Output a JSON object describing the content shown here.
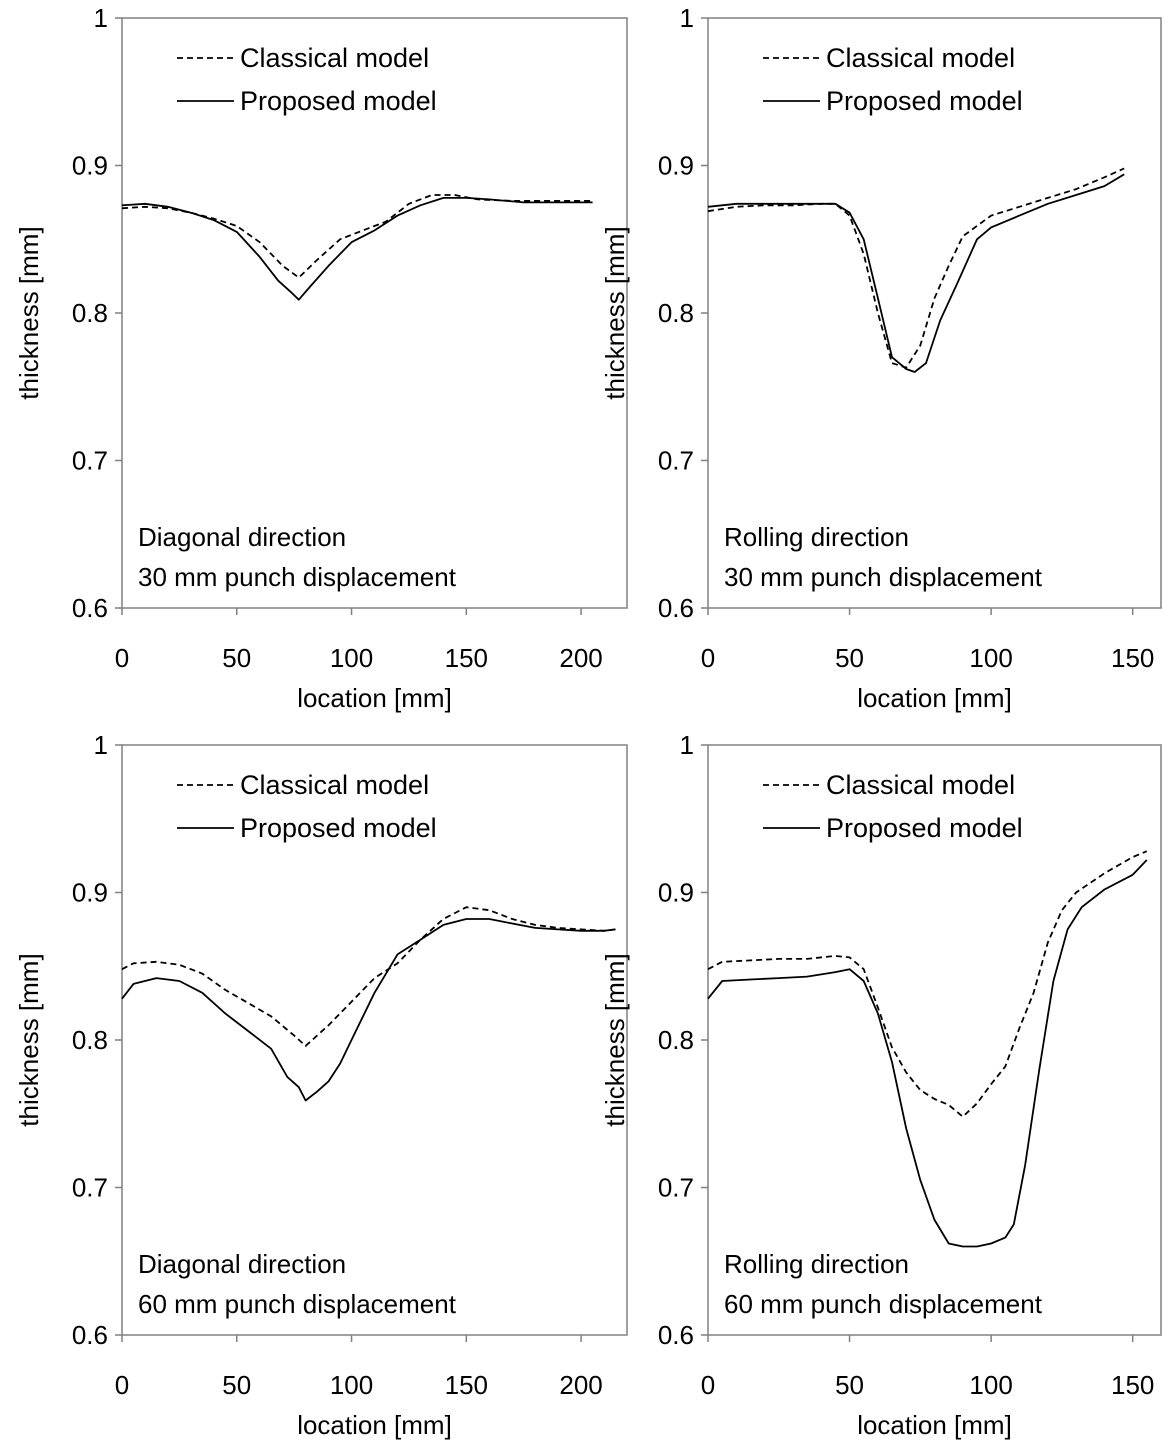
{
  "chart_data": [
    {
      "type": "line",
      "xlabel": "location [mm]",
      "ylabel": "thickness [mm]",
      "xlim": [
        0,
        220
      ],
      "ylim": [
        0.6,
        1.0
      ],
      "xticks": [
        "0",
        "50",
        "100",
        "150",
        "200"
      ],
      "yticks": [
        "0.6",
        "0.7",
        "0.8",
        "0.9",
        "1"
      ],
      "legend_position": "top-left",
      "annotation": [
        "Diagonal direction",
        "30 mm punch displacement"
      ],
      "grid": false,
      "series": [
        {
          "name": "Classical model",
          "style": "dashed",
          "x": [
            0,
            10,
            20,
            30,
            40,
            50,
            60,
            70,
            77,
            85,
            95,
            105,
            115,
            125,
            135,
            145,
            155,
            170,
            190,
            205
          ],
          "y": [
            0.871,
            0.872,
            0.871,
            0.868,
            0.864,
            0.859,
            0.848,
            0.832,
            0.824,
            0.836,
            0.85,
            0.856,
            0.862,
            0.874,
            0.88,
            0.88,
            0.877,
            0.876,
            0.876,
            0.876
          ]
        },
        {
          "name": "Proposed model",
          "style": "solid",
          "x": [
            0,
            10,
            20,
            30,
            40,
            50,
            60,
            68,
            73,
            77,
            82,
            90,
            100,
            110,
            120,
            130,
            140,
            150,
            160,
            175,
            190,
            205
          ],
          "y": [
            0.873,
            0.874,
            0.872,
            0.868,
            0.863,
            0.855,
            0.838,
            0.822,
            0.815,
            0.809,
            0.818,
            0.832,
            0.848,
            0.856,
            0.866,
            0.873,
            0.878,
            0.878,
            0.877,
            0.875,
            0.875,
            0.875
          ]
        }
      ]
    },
    {
      "type": "line",
      "xlabel": "location [mm]",
      "ylabel": "thickness  [mm]",
      "xlim": [
        0,
        160
      ],
      "ylim": [
        0.6,
        1.0
      ],
      "xticks": [
        "0",
        "50",
        "100",
        "150"
      ],
      "yticks": [
        "0.6",
        "0.7",
        "0.8",
        "0.9",
        "1"
      ],
      "legend_position": "top-left",
      "annotation": [
        "Rolling direction",
        "30 mm punch displacement"
      ],
      "grid": false,
      "series": [
        {
          "name": "Classical model",
          "style": "dashed",
          "x": [
            0,
            10,
            20,
            30,
            40,
            45,
            50,
            55,
            60,
            65,
            70,
            75,
            80,
            85,
            90,
            100,
            110,
            120,
            130,
            140,
            147
          ],
          "y": [
            0.869,
            0.872,
            0.873,
            0.873,
            0.874,
            0.874,
            0.866,
            0.84,
            0.8,
            0.766,
            0.763,
            0.778,
            0.81,
            0.832,
            0.852,
            0.866,
            0.872,
            0.878,
            0.884,
            0.892,
            0.898
          ]
        },
        {
          "name": "Proposed model",
          "style": "solid",
          "x": [
            0,
            10,
            20,
            30,
            40,
            45,
            50,
            55,
            60,
            65,
            70,
            73,
            77,
            82,
            88,
            95,
            100,
            110,
            120,
            130,
            140,
            147
          ],
          "y": [
            0.872,
            0.874,
            0.874,
            0.874,
            0.874,
            0.874,
            0.868,
            0.85,
            0.81,
            0.77,
            0.762,
            0.76,
            0.766,
            0.795,
            0.82,
            0.85,
            0.858,
            0.866,
            0.874,
            0.88,
            0.886,
            0.894
          ]
        }
      ]
    },
    {
      "type": "line",
      "xlabel": "location [mm]",
      "ylabel": "thickness [mm]",
      "xlim": [
        0,
        220
      ],
      "ylim": [
        0.6,
        1.0
      ],
      "xticks": [
        "0",
        "50",
        "100",
        "150",
        "200"
      ],
      "yticks": [
        "0.6",
        "0.7",
        "0.8",
        "0.9",
        "1"
      ],
      "legend_position": "top-left",
      "annotation": [
        "Diagonal direction",
        "60 mm punch displacement"
      ],
      "grid": false,
      "series": [
        {
          "name": "Classical model",
          "style": "dashed",
          "x": [
            0,
            5,
            15,
            25,
            35,
            45,
            55,
            65,
            75,
            80,
            90,
            100,
            110,
            120,
            130,
            140,
            150,
            160,
            170,
            180,
            190,
            200,
            210,
            215
          ],
          "y": [
            0.848,
            0.852,
            0.853,
            0.851,
            0.845,
            0.834,
            0.825,
            0.816,
            0.803,
            0.796,
            0.81,
            0.826,
            0.842,
            0.852,
            0.868,
            0.882,
            0.89,
            0.888,
            0.882,
            0.878,
            0.876,
            0.875,
            0.874,
            0.875
          ]
        },
        {
          "name": "Proposed model",
          "style": "solid",
          "x": [
            0,
            5,
            15,
            25,
            35,
            45,
            55,
            65,
            72,
            77,
            80,
            85,
            90,
            95,
            100,
            110,
            120,
            130,
            140,
            150,
            160,
            170,
            180,
            190,
            200,
            210,
            215
          ],
          "y": [
            0.828,
            0.838,
            0.842,
            0.84,
            0.832,
            0.818,
            0.806,
            0.794,
            0.775,
            0.768,
            0.759,
            0.765,
            0.772,
            0.784,
            0.8,
            0.832,
            0.858,
            0.868,
            0.878,
            0.882,
            0.882,
            0.879,
            0.876,
            0.875,
            0.874,
            0.874,
            0.875
          ]
        }
      ]
    },
    {
      "type": "line",
      "xlabel": "location [mm]",
      "ylabel": "thickness [mm]",
      "xlim": [
        0,
        160
      ],
      "ylim": [
        0.6,
        1.0
      ],
      "xticks": [
        "0",
        "50",
        "100",
        "150"
      ],
      "yticks": [
        "0.6",
        "0.7",
        "0.8",
        "0.9",
        "1"
      ],
      "legend_position": "top-left",
      "annotation": [
        "Rolling direction",
        "60 mm punch displacement"
      ],
      "grid": false,
      "series": [
        {
          "name": "Classical model",
          "style": "dashed",
          "x": [
            0,
            5,
            15,
            25,
            35,
            45,
            50,
            55,
            60,
            65,
            70,
            75,
            80,
            85,
            90,
            95,
            100,
            105,
            110,
            115,
            120,
            125,
            130,
            140,
            150,
            155
          ],
          "y": [
            0.848,
            0.853,
            0.854,
            0.855,
            0.855,
            0.857,
            0.856,
            0.848,
            0.822,
            0.795,
            0.778,
            0.766,
            0.76,
            0.756,
            0.748,
            0.757,
            0.77,
            0.782,
            0.808,
            0.832,
            0.866,
            0.888,
            0.9,
            0.913,
            0.924,
            0.928
          ]
        },
        {
          "name": "Proposed model",
          "style": "solid",
          "x": [
            0,
            5,
            15,
            25,
            35,
            45,
            50,
            55,
            60,
            65,
            70,
            75,
            80,
            85,
            90,
            95,
            100,
            105,
            108,
            112,
            117,
            122,
            127,
            132,
            140,
            150,
            155
          ],
          "y": [
            0.828,
            0.84,
            0.841,
            0.842,
            0.843,
            0.846,
            0.848,
            0.84,
            0.818,
            0.785,
            0.74,
            0.705,
            0.678,
            0.662,
            0.66,
            0.66,
            0.662,
            0.666,
            0.675,
            0.715,
            0.78,
            0.84,
            0.875,
            0.89,
            0.902,
            0.912,
            0.922
          ]
        }
      ]
    }
  ]
}
